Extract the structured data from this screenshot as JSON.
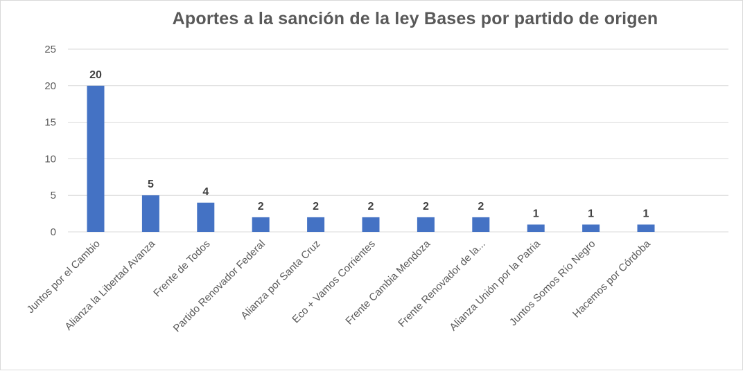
{
  "chart_data": {
    "type": "bar",
    "title": "Aportes a la sanción de la ley Bases por partido de origen",
    "categories": [
      "Juntos por el Cambio",
      "Alianza la Libertad Avanza",
      "Frente de Todos",
      "Partido Renovador Federal",
      "Alianza por Santa Cruz",
      "Eco + Vamos Corrientes",
      "Frente Cambia Mendoza",
      "Frente Renovador de la...",
      "Alianza Unión por la Patria",
      "Juntos Somos Río Negro",
      "Hacemos por Córdoba"
    ],
    "values": [
      20,
      5,
      4,
      2,
      2,
      2,
      2,
      2,
      1,
      1,
      1
    ],
    "data_labels": [
      "20",
      "5",
      "4",
      "2",
      "2",
      "2",
      "2",
      "2",
      "1",
      "1",
      "1"
    ],
    "yticks": [
      "0",
      "5",
      "10",
      "15",
      "20",
      "25"
    ],
    "ylim": [
      0,
      25
    ],
    "xlabel": "",
    "ylabel": "",
    "grid": true,
    "bar_color": "#4472c4",
    "grid_color": "#d9d9d9"
  }
}
